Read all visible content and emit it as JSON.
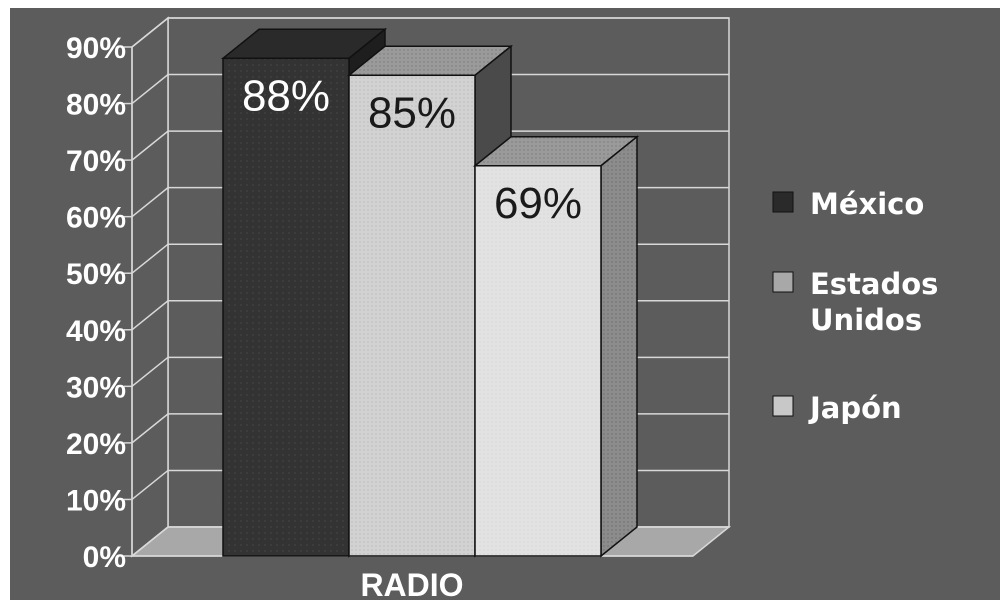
{
  "chart_data": {
    "type": "bar",
    "title": "",
    "xlabel": "",
    "ylabel": "",
    "categories": [
      "RADIO"
    ],
    "series": [
      {
        "name": "México",
        "values": [
          88
        ],
        "label": "88%",
        "color": "#333333"
      },
      {
        "name": "Estados Unidos",
        "values": [
          85
        ],
        "label": "85%",
        "color": "#cfcfcf"
      },
      {
        "name": "Japón",
        "values": [
          69
        ],
        "label": "69%",
        "color": "#e2e2e2"
      }
    ],
    "ylim": [
      0,
      90
    ],
    "yticks": [
      "0%",
      "10%",
      "20%",
      "30%",
      "40%",
      "50%",
      "60%",
      "70%",
      "80%",
      "90%"
    ],
    "grid": true,
    "legend": "right",
    "three_d": true
  }
}
